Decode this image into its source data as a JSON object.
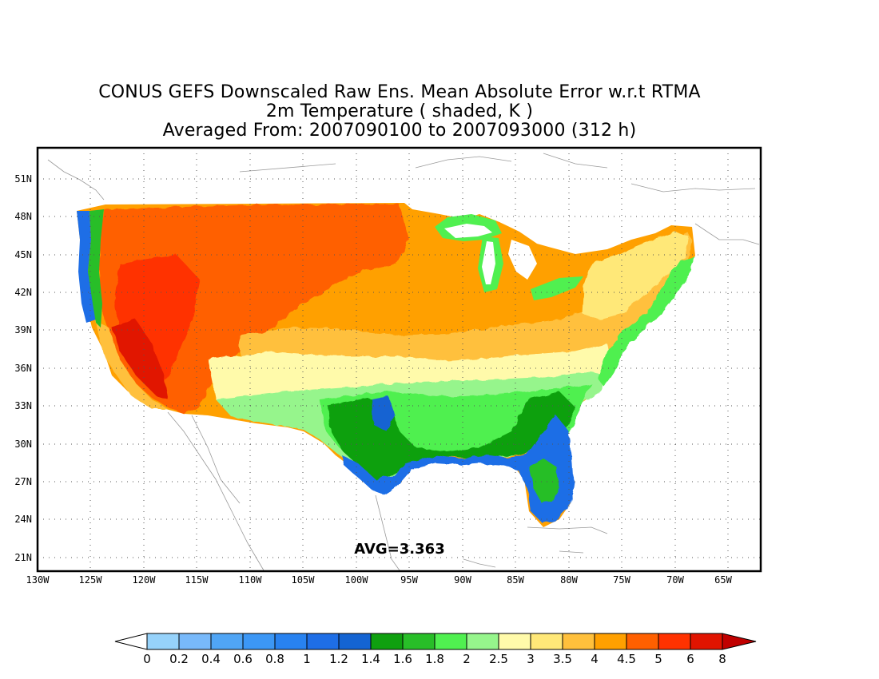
{
  "title": {
    "line1": "CONUS GEFS Downscaled Raw Ens. Mean Absolute Error w.r.t RTMA",
    "line2": "2m Temperature ( shaded, K )",
    "line3": "Averaged From: 2007090100 to 2007093000 (312 h)"
  },
  "map": {
    "region": "CONUS",
    "avg_label": "AVG=3.363",
    "lon_range": [
      -130,
      -62
    ],
    "lat_range": [
      19.5,
      52.5
    ],
    "grid": "dotted"
  },
  "lat_ticks": [
    "51N",
    "48N",
    "45N",
    "42N",
    "39N",
    "36N",
    "33N",
    "30N",
    "27N",
    "24N",
    "21N"
  ],
  "lon_ticks": [
    "130W",
    "125W",
    "120W",
    "115W",
    "110W",
    "105W",
    "100W",
    "95W",
    "90W",
    "85W",
    "80W",
    "75W",
    "70W",
    "65W"
  ],
  "colorbar": {
    "labels": [
      "0",
      "0.2",
      "0.4",
      "0.6",
      "0.8",
      "1",
      "1.2",
      "1.4",
      "1.6",
      "1.8",
      "2",
      "2.5",
      "3",
      "3.5",
      "4",
      "4.5",
      "5",
      "6",
      "8"
    ],
    "colors": [
      "#ffffff",
      "#96d2fa",
      "#78b9fa",
      "#50a5f5",
      "#3c97f5",
      "#2882f0",
      "#1e6ee6",
      "#1464d2",
      "#0fa00f",
      "#28be28",
      "#50f050",
      "#96f58c",
      "#fffaaa",
      "#ffe878",
      "#ffc03c",
      "#ffa000",
      "#ff6000",
      "#ff3200",
      "#e11400",
      "#c00000"
    ]
  }
}
